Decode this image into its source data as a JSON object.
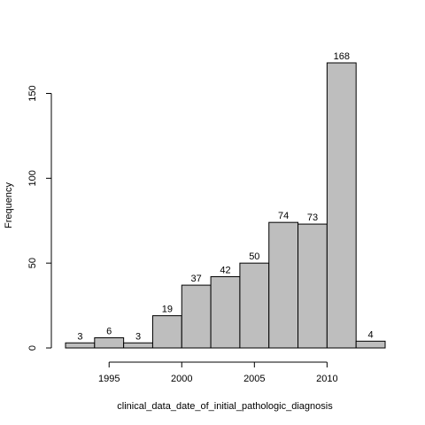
{
  "chart_data": {
    "type": "bar",
    "title": "",
    "xlabel": "clinical_data_date_of_initial_pathologic_diagnosis",
    "ylabel": "Frequency",
    "bins": [
      {
        "start": 1992,
        "end": 1994,
        "value": 3
      },
      {
        "start": 1994,
        "end": 1996,
        "value": 6
      },
      {
        "start": 1996,
        "end": 1998,
        "value": 3
      },
      {
        "start": 1998,
        "end": 2000,
        "value": 19
      },
      {
        "start": 2000,
        "end": 2002,
        "value": 37
      },
      {
        "start": 2002,
        "end": 2004,
        "value": 42
      },
      {
        "start": 2004,
        "end": 2006,
        "value": 50
      },
      {
        "start": 2006,
        "end": 2008,
        "value": 74
      },
      {
        "start": 2008,
        "end": 2010,
        "value": 73
      },
      {
        "start": 2010,
        "end": 2012,
        "value": 168
      },
      {
        "start": 2012,
        "end": 2014,
        "value": 4
      }
    ],
    "xticks": [
      1995,
      2000,
      2005,
      2010
    ],
    "yticks": [
      0,
      50,
      100,
      150
    ],
    "xlim": [
      1992,
      2014
    ],
    "ylim": [
      0,
      168
    ],
    "grid": false,
    "bar_color": "#bebebe"
  }
}
